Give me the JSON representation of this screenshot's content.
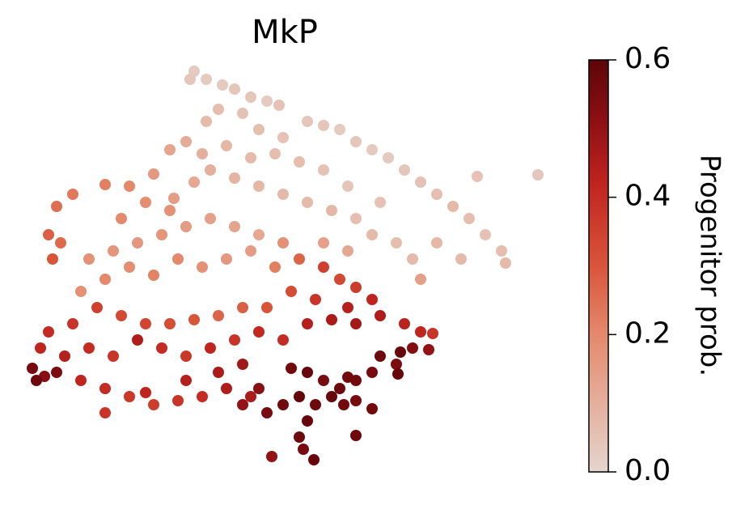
{
  "chart_data": {
    "type": "scatter",
    "title": "MkP",
    "colorbar_label": "Progenitor prob.",
    "xlim": [
      0,
      700
    ],
    "ylim": [
      0,
      500
    ],
    "clim": [
      0,
      0.6
    ],
    "cticks": [
      {
        "value": 0,
        "label": "0.0"
      },
      0.2,
      0.4,
      0.6
    ],
    "x": [
      240,
      235,
      255,
      275,
      290,
      310,
      330,
      345,
      300,
      270,
      255,
      320,
      350,
      380,
      400,
      420,
      440,
      460,
      480,
      500,
      520,
      540,
      560,
      580,
      600,
      620,
      625,
      590,
      665,
      470,
      430,
      400,
      370,
      340,
      310,
      280,
      250,
      230,
      210,
      190,
      215,
      240,
      260,
      290,
      320,
      350,
      380,
      410,
      440,
      460,
      490,
      510,
      540,
      570,
      520,
      430,
      400,
      160,
      130,
      90,
      70,
      60,
      75,
      65,
      110,
      140,
      170,
      200,
      230,
      260,
      290,
      320,
      350,
      150,
      180,
      210,
      100,
      130,
      160,
      190,
      220,
      250,
      280,
      310,
      340,
      370,
      400,
      420,
      440,
      460,
      430,
      390,
      360,
      330,
      300,
      270,
      240,
      210,
      180,
      150,
      120,
      90,
      60,
      50,
      80,
      110,
      140,
      170,
      200,
      230,
      260,
      290,
      320,
      350,
      380,
      410,
      440,
      470,
      500,
      520,
      535,
      100,
      130,
      160,
      190,
      220,
      250,
      280,
      310,
      130,
      180,
      230,
      270,
      300,
      40,
      55,
      70,
      45,
      360,
      380,
      400,
      420,
      440,
      460,
      470,
      490,
      495,
      510,
      530,
      330,
      350,
      370,
      390,
      410,
      425,
      440,
      380,
      460,
      370,
      375,
      388,
      336,
      440,
      492,
      430,
      320,
      300
    ],
    "y": [
      492,
      482,
      482,
      475,
      470,
      460,
      455,
      450,
      440,
      445,
      430,
      420,
      410,
      430,
      425,
      420,
      405,
      395,
      385,
      370,
      355,
      340,
      325,
      310,
      290,
      270,
      255,
      362,
      364,
      330,
      350,
      370,
      380,
      390,
      385,
      400,
      390,
      405,
      395,
      365,
      335,
      355,
      370,
      360,
      350,
      340,
      330,
      320,
      310,
      290,
      280,
      260,
      280,
      260,
      235,
      270,
      280,
      350,
      352,
      340,
      325,
      290,
      280,
      260,
      260,
      270,
      280,
      290,
      300,
      310,
      300,
      290,
      280,
      310,
      330,
      320,
      220,
      235,
      250,
      240,
      260,
      250,
      260,
      270,
      250,
      260,
      250,
      235,
      225,
      210,
      200,
      210,
      220,
      200,
      200,
      190,
      185,
      180,
      180,
      190,
      200,
      180,
      170,
      150,
      140,
      150,
      140,
      160,
      150,
      140,
      150,
      160,
      170,
      160,
      180,
      185,
      180,
      190,
      180,
      170,
      168,
      110,
      100,
      90,
      80,
      85,
      90,
      100,
      90,
      70,
      95,
      110,
      120,
      130,
      125,
      115,
      120,
      110,
      125,
      120,
      110,
      100,
      110,
      120,
      140,
      130,
      145,
      150,
      148,
      70,
      80,
      90,
      80,
      90,
      80,
      85,
      60,
      75,
      40,
      25,
      12,
      16,
      42,
      118,
      114,
      100,
      80
    ],
    "values": [
      0.03,
      0.04,
      0.03,
      0.03,
      0.04,
      0.04,
      0.03,
      0.05,
      0.05,
      0.06,
      0.07,
      0.06,
      0.05,
      0.04,
      0.04,
      0.03,
      0.04,
      0.03,
      0.03,
      0.04,
      0.05,
      0.06,
      0.07,
      0.06,
      0.05,
      0.06,
      0.07,
      0.05,
      0.04,
      0.05,
      0.04,
      0.05,
      0.06,
      0.06,
      0.07,
      0.08,
      0.1,
      0.11,
      0.13,
      0.16,
      0.15,
      0.12,
      0.1,
      0.09,
      0.08,
      0.07,
      0.07,
      0.08,
      0.06,
      0.07,
      0.06,
      0.07,
      0.08,
      0.07,
      0.14,
      0.12,
      0.14,
      0.2,
      0.22,
      0.23,
      0.25,
      0.28,
      0.26,
      0.3,
      0.18,
      0.17,
      0.16,
      0.17,
      0.15,
      0.14,
      0.13,
      0.12,
      0.18,
      0.2,
      0.19,
      0.18,
      0.18,
      0.2,
      0.19,
      0.21,
      0.2,
      0.18,
      0.16,
      0.15,
      0.22,
      0.27,
      0.35,
      0.33,
      0.36,
      0.42,
      0.44,
      0.38,
      0.32,
      0.3,
      0.28,
      0.27,
      0.3,
      0.32,
      0.34,
      0.33,
      0.35,
      0.38,
      0.4,
      0.42,
      0.44,
      0.4,
      0.38,
      0.45,
      0.4,
      0.37,
      0.42,
      0.38,
      0.41,
      0.4,
      0.44,
      0.46,
      0.47,
      0.45,
      0.43,
      0.42,
      0.38,
      0.42,
      0.4,
      0.37,
      0.36,
      0.38,
      0.4,
      0.45,
      0.46,
      0.38,
      0.42,
      0.44,
      0.46,
      0.48,
      0.55,
      0.52,
      0.54,
      0.57,
      0.56,
      0.58,
      0.55,
      0.57,
      0.56,
      0.55,
      0.57,
      0.54,
      0.58,
      0.53,
      0.5,
      0.55,
      0.56,
      0.59,
      0.57,
      0.58,
      0.56,
      0.55,
      0.58,
      0.56,
      0.57,
      0.55,
      0.58,
      0.5,
      0.57,
      0.58,
      0.56,
      0.52,
      0.5
    ]
  }
}
